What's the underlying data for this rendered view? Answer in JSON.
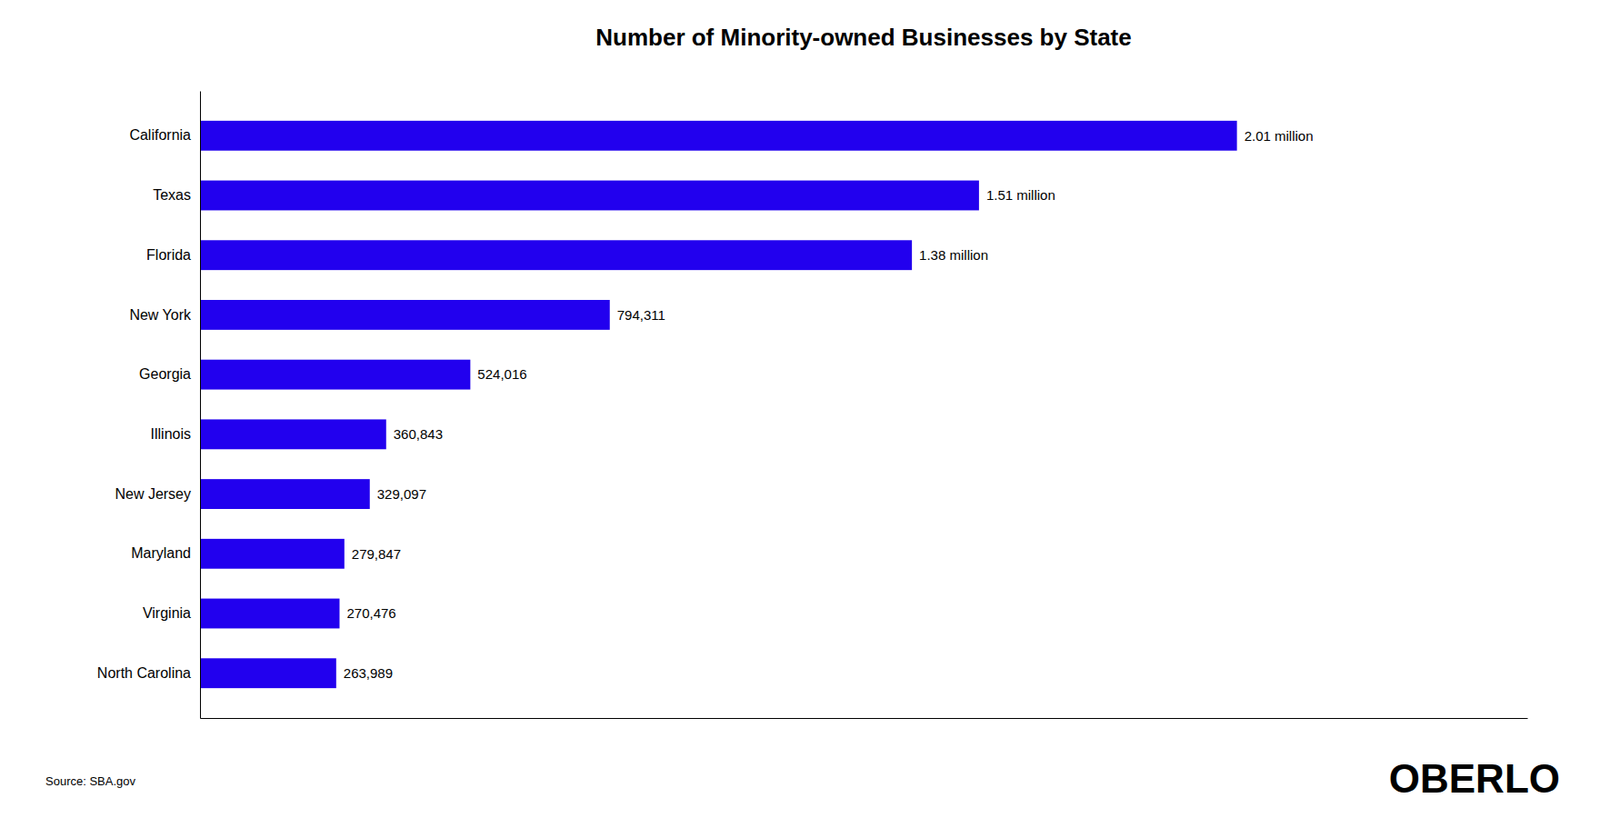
{
  "chart_data": {
    "type": "bar",
    "orientation": "horizontal",
    "title": "Number of Minority-owned Businesses by State",
    "categories": [
      "California",
      "Texas",
      "Florida",
      "New York",
      "Georgia",
      "Illinois",
      "New Jersey",
      "Maryland",
      "Virginia",
      "North Carolina"
    ],
    "values": [
      2010000,
      1510000,
      1380000,
      794311,
      524016,
      360843,
      329097,
      279847,
      270476,
      263989
    ],
    "value_labels": [
      "2.01 million",
      "1.51 million",
      "1.38 million",
      "794,311",
      "524,016",
      "360,843",
      "329,097",
      "279,847",
      "270,476",
      "263,989"
    ],
    "color": "#2200EE",
    "xlim": [
      0,
      2572800
    ],
    "data_labels": true,
    "tick_labels": "y",
    "grid": false,
    "annotations": [
      "Source: SBA.gov",
      "OBERLO"
    ]
  }
}
